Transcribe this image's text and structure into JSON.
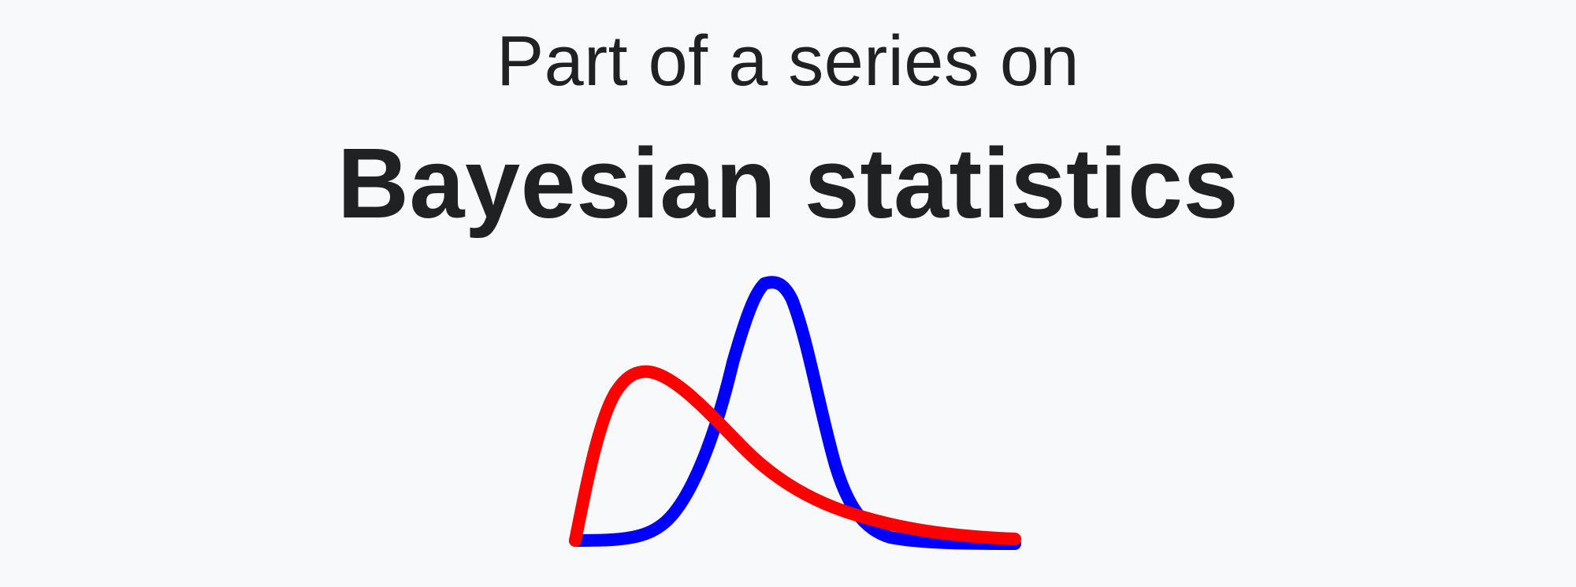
{
  "infobox": {
    "subtitle": "Part of a series on",
    "title": "Bayesian statistics"
  },
  "illustration": {
    "icon": "bayesian-distributions-icon",
    "curves": [
      {
        "name": "blue-curve",
        "color": "#0000ff"
      },
      {
        "name": "red-curve",
        "color": "#ff0000"
      }
    ]
  }
}
